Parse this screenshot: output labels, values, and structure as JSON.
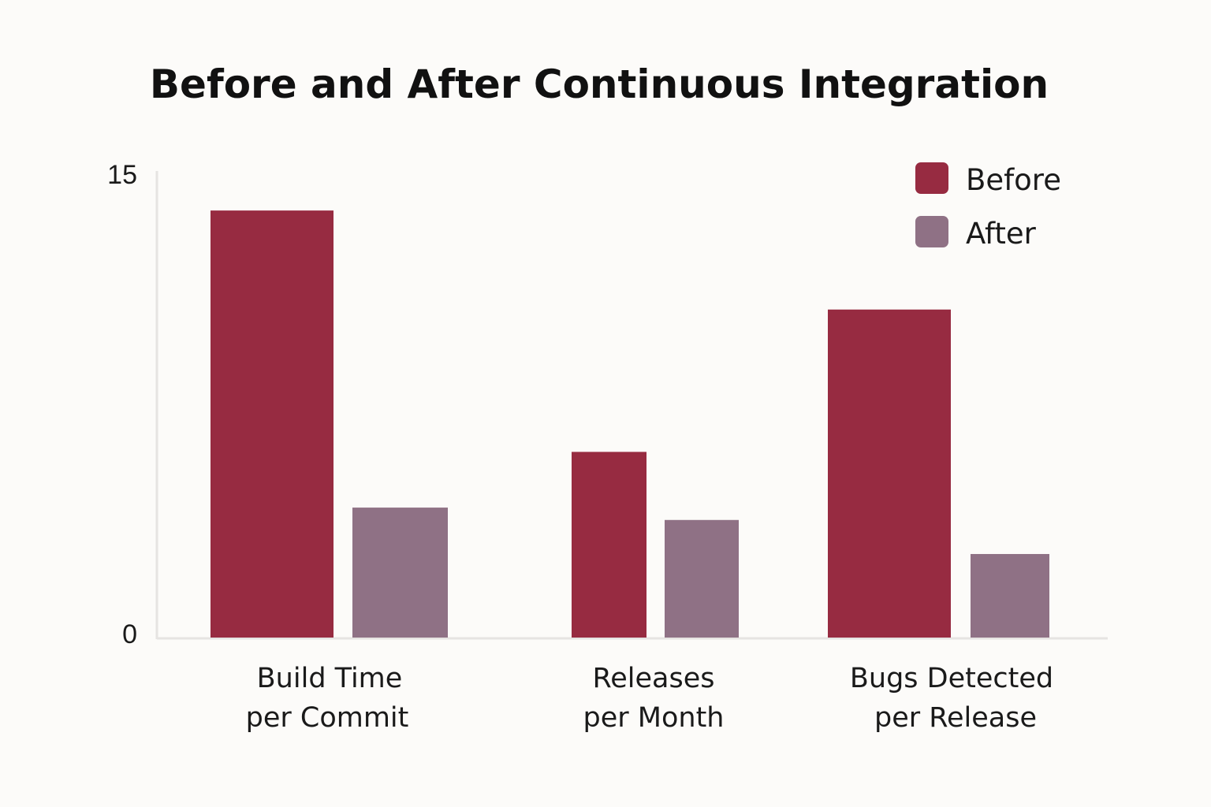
{
  "chart_data": {
    "type": "bar",
    "title": "Before and After Continuous Integration",
    "xlabel": "",
    "ylabel": "",
    "ylim": [
      0,
      15
    ],
    "y_ticks": [
      "0",
      "15"
    ],
    "grid": false,
    "legend_position": "top-right",
    "categories": [
      [
        "Build Time",
        "per Commit"
      ],
      [
        "Releases",
        "per Month"
      ],
      [
        "Bugs Detected",
        "per Release"
      ]
    ],
    "series": [
      {
        "name": "Before",
        "color": "#972b41",
        "values": [
          13.8,
          6.0,
          10.6
        ]
      },
      {
        "name": "After",
        "color": "#8f7185",
        "values": [
          4.2,
          3.8,
          2.7
        ]
      }
    ]
  }
}
